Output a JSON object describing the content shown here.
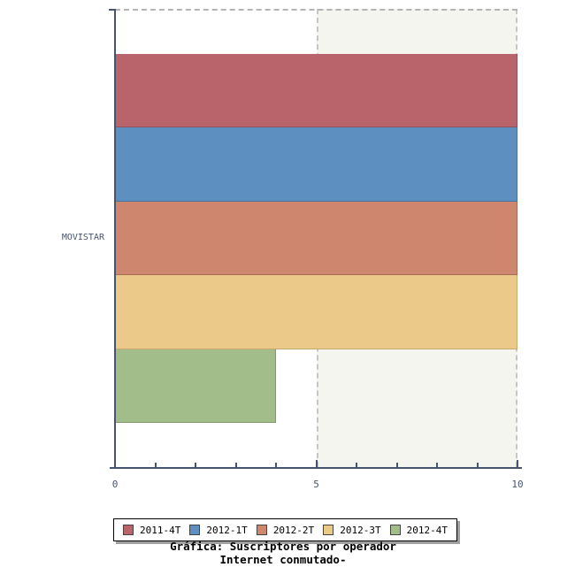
{
  "chart_data": {
    "type": "bar",
    "orientation": "horizontal",
    "title": "Gráfica: Suscriptores por operador",
    "subtitle": "Internet conmutado-",
    "categories": [
      "MOVISTAR"
    ],
    "series": [
      {
        "name": "2011-4T",
        "values": [
          10
        ],
        "color": "#b9636b",
        "border_color": "#92505a"
      },
      {
        "name": "2012-1T",
        "values": [
          10
        ],
        "color": "#5d8fc0",
        "border_color": "#4a739c"
      },
      {
        "name": "2012-2T",
        "values": [
          10
        ],
        "color": "#ce876e",
        "border_color": "#a66c58"
      },
      {
        "name": "2012-3T",
        "values": [
          10
        ],
        "color": "#eac989",
        "border_color": "#c6a96c"
      },
      {
        "name": "2012-4T",
        "values": [
          4
        ],
        "color": "#a2bc8a",
        "border_color": "#82996e"
      }
    ],
    "xlim": [
      0,
      10
    ],
    "x_ticks": [
      0,
      5,
      10
    ],
    "x_minor_ticks": [
      1,
      2,
      3,
      4,
      6,
      7,
      8,
      9
    ],
    "grid": "off",
    "legend_position": "bottom",
    "highlight_band": {
      "from": 5,
      "to": 10,
      "color": "#f5f5ef"
    }
  },
  "colors": {
    "axis": "#46546e",
    "axis_text": "#46546e",
    "band_dash": "#c6c6c6",
    "top_dash": "#b4b4b4",
    "legend_border": "#000000",
    "legend_shadow": "#a0a0a0",
    "swatch_border": "#444444",
    "background": "#ffffff"
  },
  "legend": {
    "items": [
      "2011-4T",
      "2012-1T",
      "2012-2T",
      "2012-3T",
      "2012-4T"
    ]
  }
}
